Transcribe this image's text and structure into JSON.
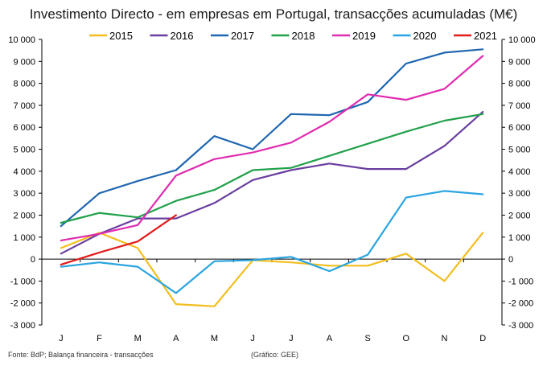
{
  "chart_data": {
    "type": "line",
    "title": "Investimento Directo - em empresas em Portugal, transacções acumuladas (M€)",
    "categories": [
      "J",
      "F",
      "M",
      "A",
      "M",
      "J",
      "J",
      "A",
      "S",
      "O",
      "N",
      "D"
    ],
    "ylim": [
      -3000,
      10000
    ],
    "ytick_step": 1000,
    "grid": false,
    "legend_position": "top",
    "series": [
      {
        "name": "2015",
        "color": "#F2BE1E",
        "values": [
          500,
          1200,
          500,
          -2050,
          -2150,
          -50,
          -150,
          -300,
          -300,
          250,
          -1000,
          1200
        ]
      },
      {
        "name": "2016",
        "color": "#6A3FA0",
        "values": [
          250,
          1150,
          1850,
          1850,
          2550,
          3600,
          4050,
          4350,
          4100,
          4100,
          5150,
          6700
        ]
      },
      {
        "name": "2017",
        "color": "#1F66B0",
        "values": [
          1500,
          3000,
          3550,
          4050,
          5600,
          5000,
          6600,
          6550,
          7150,
          8900,
          9400,
          9550
        ]
      },
      {
        "name": "2018",
        "color": "#21A04A",
        "values": [
          1650,
          2100,
          1900,
          2650,
          3150,
          4050,
          4150,
          4700,
          5250,
          5800,
          6300,
          6600
        ]
      },
      {
        "name": "2019",
        "color": "#E02BB0",
        "values": [
          850,
          1150,
          1550,
          3800,
          4550,
          4850,
          5300,
          6250,
          7500,
          7250,
          7750,
          9250
        ]
      },
      {
        "name": "2020",
        "color": "#2AA4E0",
        "values": [
          -350,
          -150,
          -350,
          -1550,
          -100,
          -50,
          100,
          -550,
          200,
          2800,
          3100,
          2950
        ]
      },
      {
        "name": "2021",
        "color": "#E21A1A",
        "values": [
          -250,
          300,
          800,
          2000,
          null,
          null,
          null,
          null,
          null,
          null,
          null,
          null
        ]
      }
    ]
  },
  "footer": {
    "source": "Fonte: BdP; Balança financeira - transacções",
    "credit": "(Gráfico: GEE)"
  }
}
